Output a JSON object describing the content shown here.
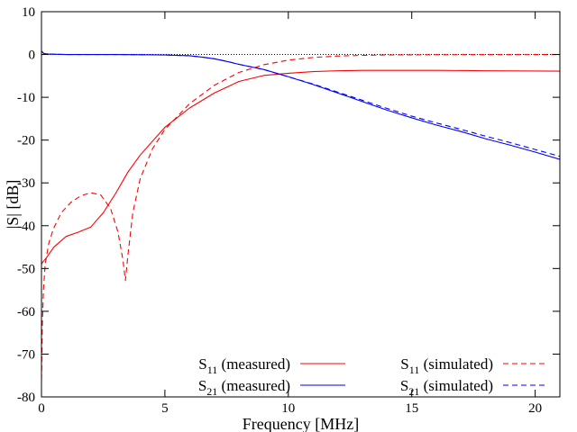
{
  "chart_data": {
    "type": "line",
    "title": "",
    "xlabel": "Frequency [MHz]",
    "ylabel": "|S| [dB]",
    "xlim": [
      0,
      21
    ],
    "ylim": [
      -80,
      10
    ],
    "xticks": [
      0,
      5,
      10,
      15,
      20
    ],
    "yticks": [
      10,
      0,
      -10,
      -20,
      -30,
      -40,
      -50,
      -60,
      -70,
      -80
    ],
    "grid": false,
    "legend_position": "bottom-right",
    "reference_line": {
      "y": 0,
      "style": "dotted",
      "color": "#000000"
    },
    "series": [
      {
        "name": "S11 (measured)",
        "label_main": "S",
        "label_sub": "11",
        "label_rest": "(measured)",
        "color": "#ff0000",
        "dash": "solid",
        "x": [
          0,
          0.05,
          0.2,
          0.5,
          1.0,
          1.5,
          2.0,
          2.5,
          3.0,
          3.5,
          4.0,
          5.0,
          6.0,
          7.0,
          8.0,
          9.0,
          10.0,
          11.0,
          12.0,
          13.0,
          14.0,
          16.0,
          18.0,
          21.0
        ],
        "y": [
          -49,
          -48.5,
          -47.5,
          -45.0,
          -42.5,
          -41.5,
          -40.3,
          -37.0,
          -32.5,
          -27.5,
          -23.5,
          -17.0,
          -12.5,
          -9.0,
          -6.3,
          -4.9,
          -4.4,
          -4.0,
          -3.8,
          -3.7,
          -3.7,
          -3.7,
          -3.8,
          -3.9
        ]
      },
      {
        "name": "S21 (measured)",
        "label_main": "S",
        "label_sub": "21",
        "label_rest": "(measured)",
        "color": "#0000ff",
        "dash": "solid",
        "x": [
          0,
          0.1,
          0.3,
          1,
          2,
          3,
          4,
          5,
          6,
          6.5,
          7,
          7.5,
          8,
          9,
          10,
          11,
          12,
          13,
          14,
          15,
          16,
          17,
          18,
          19,
          20,
          21
        ],
        "y": [
          0.8,
          0.2,
          0.1,
          0,
          0,
          0,
          -0.05,
          -0.1,
          -0.3,
          -0.6,
          -1.0,
          -1.6,
          -2.3,
          -3.5,
          -5.2,
          -7.0,
          -9.0,
          -11.0,
          -13.0,
          -14.8,
          -16.5,
          -18.0,
          -19.7,
          -21.2,
          -22.8,
          -24.5
        ]
      },
      {
        "name": "S11 (simulated)",
        "label_main": "S",
        "label_sub": "11",
        "label_rest": "(simulated)",
        "color": "#ff0000",
        "dash": "dashed",
        "x": [
          0,
          0.03,
          0.08,
          0.15,
          0.3,
          0.5,
          0.8,
          1.2,
          1.6,
          2.0,
          2.4,
          2.8,
          3.1,
          3.3,
          3.4,
          3.5,
          3.7,
          4.0,
          4.5,
          5.0,
          6.0,
          7.0,
          8.0,
          9.0,
          10.0,
          11.0,
          12.0,
          13.0,
          14.0,
          16.0,
          21.0
        ],
        "y": [
          -76,
          -64,
          -55,
          -49,
          -44,
          -40.5,
          -37.0,
          -34.5,
          -33.0,
          -32.3,
          -32.8,
          -36.0,
          -41.5,
          -48.0,
          -52.8,
          -47.0,
          -37.0,
          -29.0,
          -22.0,
          -17.5,
          -11.5,
          -7.2,
          -4.2,
          -2.4,
          -1.3,
          -0.7,
          -0.35,
          -0.2,
          -0.1,
          -0.05,
          0
        ]
      },
      {
        "name": "S21 (simulated)",
        "label_main": "S",
        "label_sub": "21",
        "label_rest": "(simulated)",
        "color": "#0000ff",
        "dash": "dashed",
        "x": [
          0,
          0.1,
          0.3,
          1,
          2,
          3,
          4,
          5,
          6,
          6.5,
          7,
          7.5,
          8,
          9,
          10,
          11,
          12,
          13,
          14,
          15,
          16,
          17,
          18,
          19,
          20,
          21
        ],
        "y": [
          0.8,
          0.2,
          0.1,
          0,
          0,
          0,
          -0.05,
          -0.1,
          -0.3,
          -0.6,
          -1.0,
          -1.6,
          -2.3,
          -3.5,
          -5.2,
          -6.9,
          -8.8,
          -10.7,
          -12.6,
          -14.4,
          -16.0,
          -17.5,
          -19.1,
          -20.6,
          -22.2,
          -23.8
        ]
      }
    ]
  }
}
